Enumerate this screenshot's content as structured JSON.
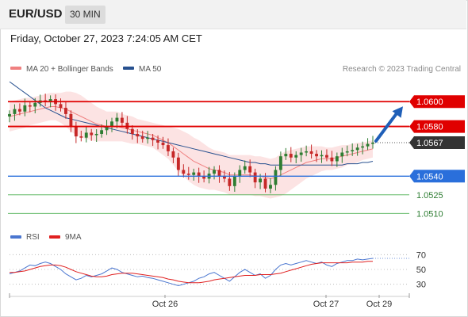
{
  "header": {
    "symbol": "EUR/USD",
    "timeframe": "30 MIN",
    "datetime": "Friday, October 27, 2023 7:24:05 AM CET"
  },
  "credit": "Research © 2023 Trading Central",
  "legend": {
    "ma20_label": "MA 20 + Bollinger Bands",
    "ma50_label": "MA 50",
    "rsi_label": "RSI",
    "rsi_ma_label": "9MA"
  },
  "colors": {
    "resistance": "#e00000",
    "support": "#2a6fdb",
    "target": "#4caf50",
    "current": "#333333",
    "ma20": "#f08080",
    "bollinger": "#fbdada",
    "ma50": "#27508f",
    "candle_up": "#2e7d32",
    "candle_down": "#c62828",
    "rsi": "#4a76d0",
    "rsi_ma": "#e02020",
    "arrow": "#1f5fb8"
  },
  "chart_data": [
    {
      "type": "candlestick",
      "ylim": [
        1.05,
        1.0618
      ],
      "levels": [
        {
          "name": "resistance",
          "value": 1.06,
          "label": "1.0600"
        },
        {
          "name": "resistance",
          "value": 1.058,
          "label": "1.0580"
        },
        {
          "name": "current",
          "value": 1.0567,
          "label": "1.0567"
        },
        {
          "name": "support",
          "value": 1.054,
          "label": "1.0540"
        },
        {
          "name": "target",
          "value": 1.0525,
          "label": "1.0525"
        },
        {
          "name": "target",
          "value": 1.051,
          "label": "1.0510"
        }
      ],
      "x_ticks": [
        "Oct 26",
        "Oct 27",
        "Oct 29"
      ],
      "close": [
        1.059,
        1.0594,
        1.0592,
        1.0597,
        1.0596,
        1.0599,
        1.0601,
        1.06,
        1.0602,
        1.0598,
        1.0595,
        1.059,
        1.058,
        1.0572,
        1.0571,
        1.0575,
        1.0573,
        1.0574,
        1.0577,
        1.058,
        1.0584,
        1.0587,
        1.0583,
        1.0578,
        1.0574,
        1.0572,
        1.057,
        1.0571,
        1.0569,
        1.0567,
        1.0565,
        1.056,
        1.0555,
        1.0545,
        1.0542,
        1.0541,
        1.0543,
        1.054,
        1.0538,
        1.0542,
        1.0545,
        1.054,
        1.0538,
        1.0532,
        1.054,
        1.0545,
        1.0548,
        1.0543,
        1.0535,
        1.0538,
        1.053,
        1.0533,
        1.0545,
        1.0556,
        1.0558,
        1.0555,
        1.0557,
        1.0559,
        1.056,
        1.0558,
        1.0556,
        1.0557,
        1.0555,
        1.0552,
        1.0556,
        1.0559,
        1.056,
        1.0561,
        1.0563,
        1.0564,
        1.0566,
        1.0567
      ],
      "ma20": [
        1.0588,
        1.0589,
        1.059,
        1.0591,
        1.0592,
        1.0593,
        1.0594,
        1.0595,
        1.0596,
        1.0596,
        1.0595,
        1.0594,
        1.0592,
        1.059,
        1.0588,
        1.0586,
        1.0584,
        1.0582,
        1.0581,
        1.058,
        1.058,
        1.058,
        1.0579,
        1.0578,
        1.0577,
        1.0576,
        1.0575,
        1.0574,
        1.0573,
        1.0571,
        1.0569,
        1.0567,
        1.0564,
        1.0561,
        1.0558,
        1.0555,
        1.0552,
        1.055,
        1.0548,
        1.0546,
        1.0545,
        1.0544,
        1.0543,
        1.0541,
        1.0541,
        1.0541,
        1.0541,
        1.0541,
        1.054,
        1.054,
        1.0539,
        1.0538,
        1.0539,
        1.0541,
        1.0543,
        1.0545,
        1.0547,
        1.0549,
        1.0551,
        1.0552,
        1.0553,
        1.0554,
        1.0554,
        1.0554,
        1.0555,
        1.0556,
        1.0557,
        1.0558,
        1.0559,
        1.056,
        1.0561,
        1.0562
      ],
      "ma50": [
        1.0616,
        1.0613,
        1.061,
        1.0607,
        1.0604,
        1.0601,
        1.0598,
        1.0595,
        1.0593,
        1.0591,
        1.0589,
        1.0587,
        1.0586,
        1.0585,
        1.0584,
        1.0583,
        1.0582,
        1.0581,
        1.058,
        1.0579,
        1.0578,
        1.0577,
        1.0576,
        1.0575,
        1.0574,
        1.0573,
        1.0572,
        1.0571,
        1.057,
        1.0569,
        1.0568,
        1.0567,
        1.0566,
        1.0565,
        1.0564,
        1.0563,
        1.0562,
        1.0561,
        1.056,
        1.0559,
        1.0558,
        1.0557,
        1.0556,
        1.0555,
        1.0554,
        1.0553,
        1.0552,
        1.0551,
        1.0551,
        1.055,
        1.055,
        1.0549,
        1.0549,
        1.0549,
        1.0549,
        1.0549,
        1.0549,
        1.0549,
        1.0549,
        1.0549,
        1.0549,
        1.0549,
        1.0549,
        1.0549,
        1.0549,
        1.0549,
        1.055,
        1.055,
        1.055,
        1.0551,
        1.0551,
        1.0552
      ],
      "bollinger_half_width": [
        0.0012,
        0.0012,
        0.0012,
        0.0012,
        0.0011,
        0.0011,
        0.0011,
        0.0011,
        0.0011,
        0.0011,
        0.0012,
        0.0014,
        0.0016,
        0.0017,
        0.0017,
        0.0016,
        0.0015,
        0.0014,
        0.0013,
        0.0012,
        0.0012,
        0.0012,
        0.0011,
        0.0011,
        0.0011,
        0.001,
        0.001,
        0.001,
        0.001,
        0.0011,
        0.0012,
        0.0013,
        0.0015,
        0.0017,
        0.0018,
        0.0019,
        0.0019,
        0.0019,
        0.0018,
        0.0017,
        0.0016,
        0.0016,
        0.0016,
        0.0016,
        0.0016,
        0.0016,
        0.0016,
        0.0016,
        0.0016,
        0.0016,
        0.0016,
        0.0016,
        0.0016,
        0.0017,
        0.0017,
        0.0016,
        0.0015,
        0.0014,
        0.0013,
        0.0012,
        0.0011,
        0.001,
        0.0009,
        0.0009,
        0.0009,
        0.0009,
        0.0008,
        0.0008,
        0.0008,
        0.0007,
        0.0007,
        0.0007
      ],
      "projection": {
        "from": 1.0567,
        "to": 1.06
      }
    },
    {
      "type": "line",
      "ylim": [
        20,
        80
      ],
      "y_ticks": [
        30,
        50,
        70
      ],
      "series": [
        {
          "name": "RSI",
          "values": [
            44,
            46,
            48,
            52,
            56,
            55,
            58,
            60,
            58,
            54,
            50,
            44,
            40,
            36,
            38,
            42,
            40,
            42,
            44,
            48,
            52,
            50,
            46,
            44,
            42,
            40,
            41,
            39,
            38,
            36,
            34,
            32,
            30,
            28,
            30,
            32,
            34,
            38,
            40,
            44,
            46,
            42,
            38,
            34,
            40,
            46,
            50,
            46,
            42,
            44,
            38,
            42,
            50,
            56,
            58,
            56,
            58,
            60,
            62,
            60,
            58,
            60,
            56,
            54,
            58,
            60,
            62,
            62,
            64,
            63,
            64,
            65
          ]
        },
        {
          "name": "9MA",
          "values": [
            46,
            46,
            47,
            48,
            50,
            52,
            54,
            55,
            56,
            56,
            55,
            53,
            50,
            47,
            45,
            43,
            41,
            40,
            40,
            41,
            43,
            44,
            45,
            45,
            45,
            44,
            43,
            42,
            41,
            40,
            39,
            37,
            36,
            34,
            33,
            32,
            32,
            32,
            33,
            34,
            36,
            37,
            38,
            39,
            40,
            41,
            42,
            42,
            42,
            43,
            43,
            43,
            44,
            45,
            47,
            49,
            51,
            53,
            55,
            57,
            58,
            59,
            59,
            59,
            59,
            59,
            59,
            60,
            60,
            60,
            61,
            61
          ]
        }
      ]
    }
  ]
}
